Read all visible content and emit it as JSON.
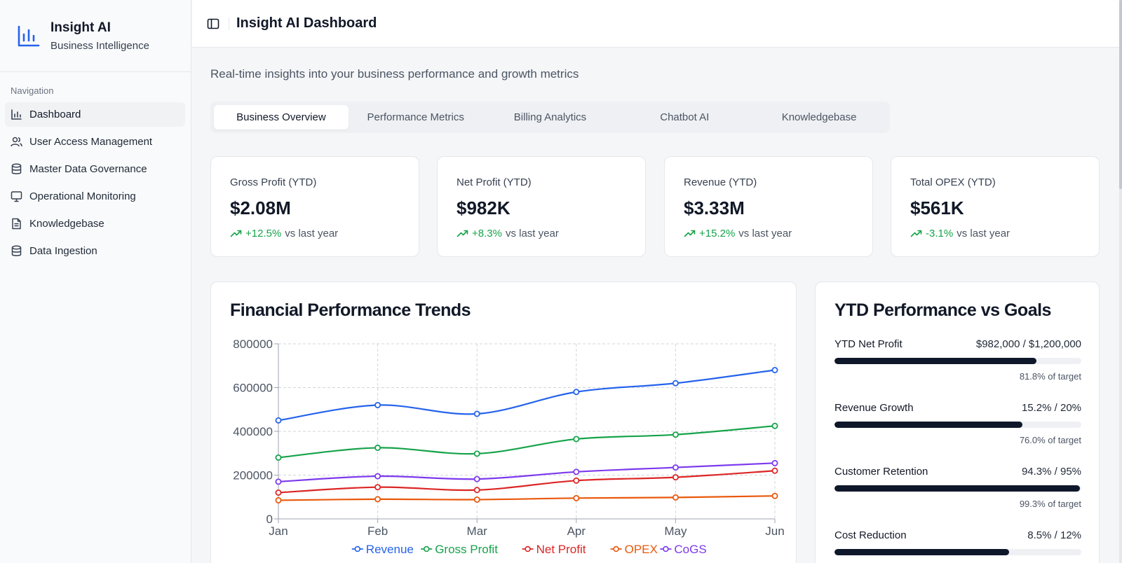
{
  "brand": {
    "title": "Insight AI",
    "subtitle": "Business Intelligence"
  },
  "nav": {
    "heading": "Navigation",
    "items": [
      {
        "label": "Dashboard",
        "icon": "bar-chart-icon"
      },
      {
        "label": "User Access Management",
        "icon": "users-icon"
      },
      {
        "label": "Master Data Governance",
        "icon": "database-icon"
      },
      {
        "label": "Operational Monitoring",
        "icon": "monitor-icon"
      },
      {
        "label": "Knowledgebase",
        "icon": "document-icon"
      },
      {
        "label": "Data Ingestion",
        "icon": "database-icon"
      }
    ]
  },
  "header": {
    "title": "Insight AI Dashboard"
  },
  "main": {
    "subtitle": "Real-time insights into your business performance and growth metrics",
    "tabs": [
      "Business Overview",
      "Performance Metrics",
      "Billing Analytics",
      "Chatbot AI",
      "Knowledgebase"
    ]
  },
  "kpis": [
    {
      "label": "Gross Profit (YTD)",
      "value": "$2.08M",
      "change": "+12.5%",
      "suffix": "vs last year"
    },
    {
      "label": "Net Profit (YTD)",
      "value": "$982K",
      "change": "+8.3%",
      "suffix": "vs last year"
    },
    {
      "label": "Revenue (YTD)",
      "value": "$3.33M",
      "change": "+15.2%",
      "suffix": "vs last year"
    },
    {
      "label": "Total OPEX (YTD)",
      "value": "$561K",
      "change": "-3.1%",
      "suffix": "vs last year"
    }
  ],
  "trends": {
    "title": "Financial Performance Trends"
  },
  "goals": {
    "title": "YTD Performance vs Goals",
    "items": [
      {
        "name": "YTD Net Profit",
        "value": "$982,000 / $1,200,000",
        "progress": 81.8,
        "foot": "81.8% of target"
      },
      {
        "name": "Revenue Growth",
        "value": "15.2% / 20%",
        "progress": 76.0,
        "foot": "76.0% of target"
      },
      {
        "name": "Customer Retention",
        "value": "94.3% / 95%",
        "progress": 99.3,
        "foot": "99.3% of target"
      },
      {
        "name": "Cost Reduction",
        "value": "8.5% / 12%",
        "progress": 70.8
      }
    ]
  },
  "colors": {
    "accent": "#2563eb",
    "positive": "#16a34a",
    "bar": "#0f172a"
  },
  "chart_data": {
    "type": "line",
    "title": "",
    "xlabel": "",
    "ylabel": "",
    "categories": [
      "Jan",
      "Feb",
      "Mar",
      "Apr",
      "May",
      "Jun"
    ],
    "ylim": [
      0,
      800000
    ],
    "yticks": [
      "0",
      "200000",
      "400000",
      "600000",
      "800000"
    ],
    "grid": true,
    "legend": "bottom",
    "series": [
      {
        "name": "Revenue",
        "color": "#2563eb",
        "values": [
          450000,
          520000,
          480000,
          580000,
          620000,
          680000
        ]
      },
      {
        "name": "Gross Profit",
        "color": "#16a34a",
        "values": [
          280000,
          325000,
          298000,
          365000,
          385000,
          425000
        ]
      },
      {
        "name": "Net Profit",
        "color": "#dc2626",
        "values": [
          120000,
          145000,
          132000,
          175000,
          190000,
          220000
        ]
      },
      {
        "name": "OPEX",
        "color": "#ea580c",
        "values": [
          85000,
          90000,
          88000,
          95000,
          98000,
          105000
        ]
      },
      {
        "name": "CoGS",
        "color": "#7c3aed",
        "values": [
          170000,
          195000,
          182000,
          215000,
          235000,
          255000
        ]
      }
    ]
  }
}
